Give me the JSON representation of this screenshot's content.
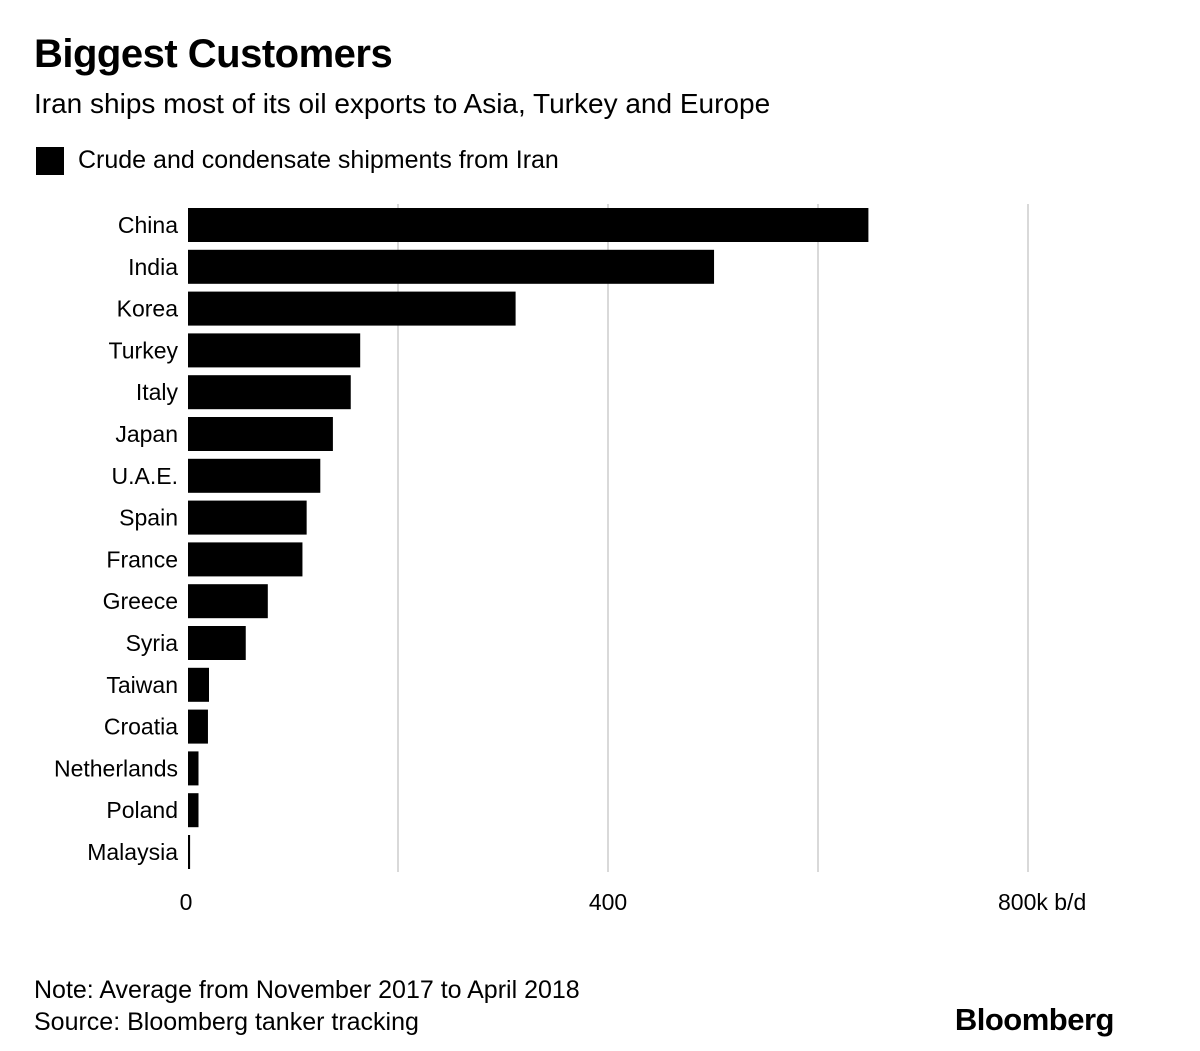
{
  "header": {
    "title": "Biggest Customers",
    "subtitle": "Iran ships most of its oil exports to Asia, Turkey and Europe"
  },
  "legend": {
    "label": "Crude and condensate shipments from Iran",
    "color": "#000000"
  },
  "chart_data": {
    "type": "bar",
    "orientation": "horizontal",
    "title": "Biggest Customers",
    "subtitle": "Iran ships most of its oil exports to Asia, Turkey and Europe",
    "categories": [
      "China",
      "India",
      "Korea",
      "Turkey",
      "Italy",
      "Japan",
      "U.A.E.",
      "Spain",
      "France",
      "Greece",
      "Syria",
      "Taiwan",
      "Croatia",
      "Netherlands",
      "Poland",
      "Malaysia"
    ],
    "series": [
      {
        "name": "Crude and condensate shipments from Iran",
        "values": [
          648,
          501,
          312,
          164,
          155,
          138,
          126,
          113,
          109,
          76,
          55,
          20,
          19,
          10,
          10,
          2
        ]
      }
    ],
    "xlim": [
      0,
      800
    ],
    "xticks": [
      0,
      400,
      800
    ],
    "xtick_labels": [
      "0",
      "400",
      "800k b/d"
    ],
    "gridlines": [
      200,
      400,
      600,
      800
    ],
    "grid": true,
    "legend_position": "top-left",
    "bar_color": "#000000",
    "grid_color": "#d9d9d9"
  },
  "footer": {
    "note": "Note: Average from November 2017 to April 2018",
    "source": "Source: Bloomberg tanker tracking",
    "brand": "Bloomberg"
  }
}
